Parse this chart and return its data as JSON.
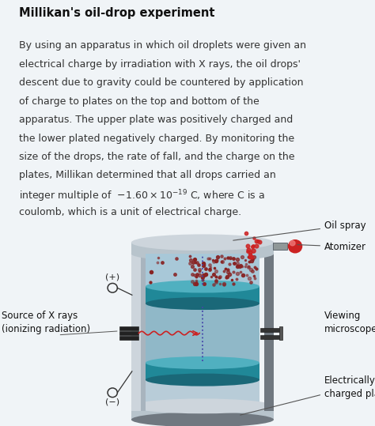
{
  "title": "Millikan's oil-drop experiment",
  "background_color": "#cce0ee",
  "text_color": "#333333",
  "title_color": "#111111",
  "label_oil_spray": "Oil spray",
  "label_atomizer": "Atomizer",
  "label_source": "Source of X rays\n(ionizing radiation)",
  "label_viewing": "Viewing\nmicroscope",
  "label_electrically": "Electrically\ncharged pla",
  "label_plus": "(+)",
  "label_minus": "(−)",
  "white_bg": "#f0f4f7"
}
